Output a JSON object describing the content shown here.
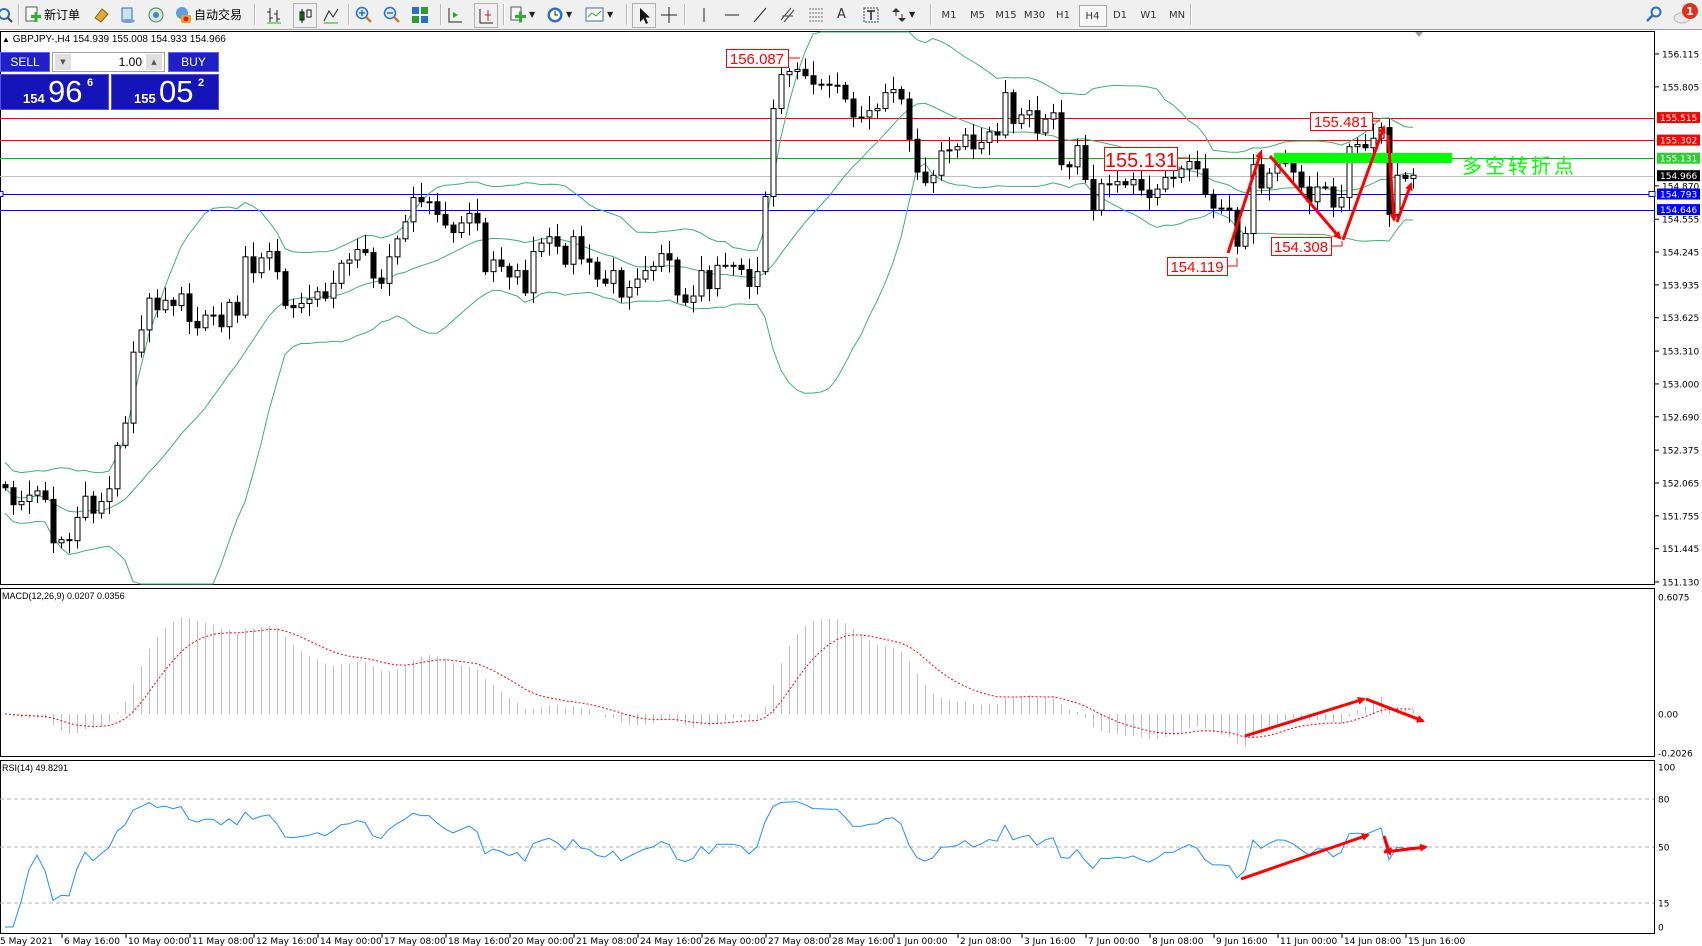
{
  "toolbar": {
    "new_order_label": "新订单",
    "auto_trade_label": "自动交易",
    "timeframes": [
      "M1",
      "M5",
      "M15",
      "M30",
      "H1",
      "H4",
      "D1",
      "W1",
      "MN"
    ],
    "active_timeframe": "H4",
    "notification_count": "1"
  },
  "ticker": "GBPJPY-,H4  154.939 155.008 154.933 154.966",
  "trade_panel": {
    "sell_label": "SELL",
    "buy_label": "BUY",
    "lot": "1.00",
    "sell_small": "154",
    "sell_big": "96",
    "sell_pip": "6",
    "buy_small": "155",
    "buy_big": "05",
    "buy_pip": "2"
  },
  "colors": {
    "bollinger": "#3cb371",
    "macd_bars": "#c0c0c0",
    "macd_signal": "#ff0000",
    "rsi_line": "#1e90ff",
    "annotation": "#ff0000",
    "zone": "#00ff00"
  },
  "chart_data": {
    "type": "candlestick",
    "symbol": "GBPJPY-",
    "timeframe": "H4",
    "price_range": [
      151.13,
      156.115
    ],
    "price_ticks": [
      "156.115",
      "155.805",
      "154.870",
      "154.555",
      "154.245",
      "153.935",
      "153.625",
      "153.310",
      "153.000",
      "152.690",
      "152.375",
      "152.065",
      "151.755",
      "151.445",
      "151.130"
    ],
    "closes": [
      152.02,
      151.86,
      151.89,
      151.95,
      151.99,
      151.91,
      151.5,
      151.53,
      151.52,
      151.74,
      151.94,
      151.78,
      151.89,
      152.01,
      152.42,
      152.63,
      153.3,
      153.51,
      153.81,
      153.7,
      153.79,
      153.74,
      153.85,
      153.59,
      153.53,
      153.65,
      153.65,
      153.54,
      153.77,
      153.65,
      154.2,
      154.05,
      154.19,
      154.25,
      154.06,
      153.74,
      153.72,
      153.76,
      153.8,
      153.87,
      153.81,
      153.95,
      154.14,
      154.17,
      154.27,
      154.24,
      154.0,
      153.95,
      154.2,
      154.37,
      154.53,
      154.76,
      154.72,
      154.72,
      154.6,
      154.5,
      154.43,
      154.52,
      154.61,
      154.52,
      154.06,
      154.17,
      154.11,
      154.01,
      154.07,
      153.86,
      154.25,
      154.33,
      154.39,
      154.3,
      154.13,
      154.39,
      154.18,
      154.15,
      153.99,
      153.95,
      154.07,
      153.82,
      153.91,
      153.99,
      154.07,
      154.11,
      154.23,
      154.17,
      153.84,
      153.77,
      153.83,
      154.07,
      153.9,
      154.12,
      154.12,
      154.12,
      154.08,
      153.92,
      154.06,
      154.77,
      155.6,
      155.92,
      155.95,
      155.97,
      155.91,
      155.83,
      155.83,
      155.82,
      155.82,
      155.69,
      155.52,
      155.52,
      155.58,
      155.6,
      155.75,
      155.78,
      155.69,
      155.31,
      155.0,
      154.9,
      154.97,
      155.2,
      155.21,
      155.24,
      155.35,
      155.22,
      155.28,
      155.38,
      155.35,
      155.75,
      155.46,
      155.54,
      155.58,
      155.37,
      155.5,
      155.56,
      155.07,
      155.05,
      155.25,
      154.93,
      154.64,
      154.89,
      154.88,
      154.91,
      154.88,
      154.93,
      154.83,
      154.76,
      154.84,
      154.95,
      154.95,
      155.03,
      155.1,
      155.03,
      154.79,
      154.66,
      154.66,
      154.64,
      154.3,
      154.42,
      155.07,
      154.85,
      154.99,
      155.09,
      155.08,
      155.0,
      154.86,
      154.72,
      154.86,
      154.86,
      154.67,
      154.76,
      155.24,
      155.26,
      155.23,
      155.32,
      155.42,
      154.6,
      154.97,
      154.94,
      154.97
    ],
    "first_open": 152.05,
    "horizontal_lines": [
      {
        "price": "155.515",
        "color": "#ff0000",
        "badge": "#ff0000"
      },
      {
        "price": "155.302",
        "color": "#ff0000",
        "badge": "#ff0000"
      },
      {
        "price": "155.131",
        "color": "#00c800",
        "badge": "#32cd32"
      },
      {
        "price": "154.966",
        "color": "#c0c0c0",
        "badge": "#000000"
      },
      {
        "price": "154.793",
        "color": "#0000ff",
        "badge": "#0000ff"
      },
      {
        "price": "154.646",
        "color": "#0000ff",
        "badge": "#0000ff"
      }
    ],
    "annotations": {
      "high_1": "156.087",
      "level": "155.131",
      "high_2": "155.481",
      "low_1": "154.119",
      "low_2": "154.308",
      "zone_text": "多空转折点"
    },
    "time_labels": [
      "5 May 2021",
      "6 May 16:00",
      "10 May 00:00",
      "11 May 08:00",
      "12 May 16:00",
      "14 May 00:00",
      "17 May 08:00",
      "18 May 16:00",
      "20 May 00:00",
      "21 May 08:00",
      "24 May 16:00",
      "26 May 00:00",
      "27 May 08:00",
      "28 May 16:00",
      "1 Jun 00:00",
      "2 Jun 08:00",
      "3 Jun 16:00",
      "7 Jun 00:00",
      "8 Jun 08:00",
      "9 Jun 16:00",
      "11 Jun 00:00",
      "14 Jun 08:00",
      "15 Jun 16:00"
    ],
    "bollinger": {
      "period": 20,
      "deviation": 2
    },
    "macd": {
      "label": "MACD(12,26,9) 0.0207 0.0356",
      "fast": 12,
      "slow": 26,
      "signal": 9,
      "range": [
        -0.2026,
        0.6075
      ],
      "ticks": [
        "0.6075",
        "0.00",
        "-0.2026"
      ]
    },
    "rsi": {
      "label": "RSI(14) 49.8291",
      "period": 14,
      "range": [
        0,
        100
      ],
      "ticks": [
        "100",
        "80",
        "50",
        "15",
        "0"
      ],
      "levels": [
        80,
        50,
        15
      ]
    }
  }
}
